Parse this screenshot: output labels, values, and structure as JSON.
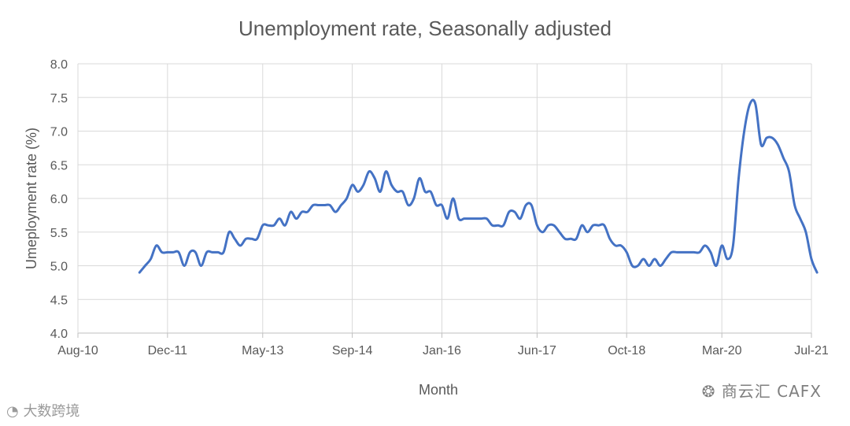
{
  "chart_data": {
    "type": "line",
    "title": "Unemployment rate, Seasonally adjusted",
    "xlabel": "Month",
    "ylabel": "Umeployment rate (%)",
    "ylim": [
      4.0,
      8.0
    ],
    "yticks": [
      "4.0",
      "4.5",
      "5.0",
      "5.5",
      "6.0",
      "6.5",
      "7.0",
      "7.5",
      "8.0"
    ],
    "xlim": [
      "2010-08",
      "2021-07"
    ],
    "xticks": [
      {
        "date": "2010-08",
        "label": "Aug-10"
      },
      {
        "date": "2011-12",
        "label": "Dec-11"
      },
      {
        "date": "2013-05",
        "label": "May-13"
      },
      {
        "date": "2014-09",
        "label": "Sep-14"
      },
      {
        "date": "2016-01",
        "label": "Jan-16"
      },
      {
        "date": "2017-06",
        "label": "Jun-17"
      },
      {
        "date": "2018-10",
        "label": "Oct-18"
      },
      {
        "date": "2020-03",
        "label": "Mar-20"
      },
      {
        "date": "2021-07",
        "label": "Jul-21"
      }
    ],
    "grid": true,
    "series": [
      {
        "color": "#4472c4",
        "points": [
          [
            "2011-07",
            4.9
          ],
          [
            "2011-08",
            5.0
          ],
          [
            "2011-09",
            5.1
          ],
          [
            "2011-10",
            5.3
          ],
          [
            "2011-11",
            5.2
          ],
          [
            "2011-12",
            5.2
          ],
          [
            "2012-01",
            5.2
          ],
          [
            "2012-02",
            5.2
          ],
          [
            "2012-03",
            5.0
          ],
          [
            "2012-04",
            5.2
          ],
          [
            "2012-05",
            5.2
          ],
          [
            "2012-06",
            5.0
          ],
          [
            "2012-07",
            5.2
          ],
          [
            "2012-08",
            5.2
          ],
          [
            "2012-09",
            5.2
          ],
          [
            "2012-10",
            5.2
          ],
          [
            "2012-11",
            5.5
          ],
          [
            "2012-12",
            5.4
          ],
          [
            "2013-01",
            5.3
          ],
          [
            "2013-02",
            5.4
          ],
          [
            "2013-03",
            5.4
          ],
          [
            "2013-04",
            5.4
          ],
          [
            "2013-05",
            5.6
          ],
          [
            "2013-06",
            5.6
          ],
          [
            "2013-07",
            5.6
          ],
          [
            "2013-08",
            5.7
          ],
          [
            "2013-09",
            5.6
          ],
          [
            "2013-10",
            5.8
          ],
          [
            "2013-11",
            5.7
          ],
          [
            "2013-12",
            5.8
          ],
          [
            "2014-01",
            5.8
          ],
          [
            "2014-02",
            5.9
          ],
          [
            "2014-03",
            5.9
          ],
          [
            "2014-04",
            5.9
          ],
          [
            "2014-05",
            5.9
          ],
          [
            "2014-06",
            5.8
          ],
          [
            "2014-07",
            5.9
          ],
          [
            "2014-08",
            6.0
          ],
          [
            "2014-09",
            6.2
          ],
          [
            "2014-10",
            6.1
          ],
          [
            "2014-11",
            6.2
          ],
          [
            "2014-12",
            6.4
          ],
          [
            "2015-01",
            6.3
          ],
          [
            "2015-02",
            6.1
          ],
          [
            "2015-03",
            6.4
          ],
          [
            "2015-04",
            6.2
          ],
          [
            "2015-05",
            6.1
          ],
          [
            "2015-06",
            6.1
          ],
          [
            "2015-07",
            5.9
          ],
          [
            "2015-08",
            6.0
          ],
          [
            "2015-09",
            6.3
          ],
          [
            "2015-10",
            6.1
          ],
          [
            "2015-11",
            6.1
          ],
          [
            "2015-12",
            5.9
          ],
          [
            "2016-01",
            5.9
          ],
          [
            "2016-02",
            5.7
          ],
          [
            "2016-03",
            6.0
          ],
          [
            "2016-04",
            5.7
          ],
          [
            "2016-05",
            5.7
          ],
          [
            "2016-06",
            5.7
          ],
          [
            "2016-07",
            5.7
          ],
          [
            "2016-08",
            5.7
          ],
          [
            "2016-09",
            5.7
          ],
          [
            "2016-10",
            5.6
          ],
          [
            "2016-11",
            5.6
          ],
          [
            "2016-12",
            5.6
          ],
          [
            "2017-01",
            5.8
          ],
          [
            "2017-02",
            5.8
          ],
          [
            "2017-03",
            5.7
          ],
          [
            "2017-04",
            5.9
          ],
          [
            "2017-05",
            5.9
          ],
          [
            "2017-06",
            5.6
          ],
          [
            "2017-07",
            5.5
          ],
          [
            "2017-08",
            5.6
          ],
          [
            "2017-09",
            5.6
          ],
          [
            "2017-10",
            5.5
          ],
          [
            "2017-11",
            5.4
          ],
          [
            "2017-12",
            5.4
          ],
          [
            "2018-01",
            5.4
          ],
          [
            "2018-02",
            5.6
          ],
          [
            "2018-03",
            5.5
          ],
          [
            "2018-04",
            5.6
          ],
          [
            "2018-05",
            5.6
          ],
          [
            "2018-06",
            5.6
          ],
          [
            "2018-07",
            5.4
          ],
          [
            "2018-08",
            5.3
          ],
          [
            "2018-09",
            5.3
          ],
          [
            "2018-10",
            5.2
          ],
          [
            "2018-11",
            5.0
          ],
          [
            "2018-12",
            5.0
          ],
          [
            "2019-01",
            5.1
          ],
          [
            "2019-02",
            5.0
          ],
          [
            "2019-03",
            5.1
          ],
          [
            "2019-04",
            5.0
          ],
          [
            "2019-05",
            5.1
          ],
          [
            "2019-06",
            5.2
          ],
          [
            "2019-07",
            5.2
          ],
          [
            "2019-08",
            5.2
          ],
          [
            "2019-09",
            5.2
          ],
          [
            "2019-10",
            5.2
          ],
          [
            "2019-11",
            5.2
          ],
          [
            "2019-12",
            5.3
          ],
          [
            "2020-01",
            5.2
          ],
          [
            "2020-02",
            5.0
          ],
          [
            "2020-03",
            5.3
          ],
          [
            "2020-04",
            5.1
          ],
          [
            "2020-05",
            5.3
          ],
          [
            "2020-06",
            6.3
          ],
          [
            "2020-07",
            7.0
          ],
          [
            "2020-08",
            7.4
          ],
          [
            "2020-09",
            7.4
          ],
          [
            "2020-10",
            6.8
          ],
          [
            "2020-11",
            6.9
          ],
          [
            "2020-12",
            6.9
          ],
          [
            "2021-01",
            6.8
          ],
          [
            "2021-02",
            6.6
          ],
          [
            "2021-03",
            6.4
          ],
          [
            "2021-04",
            5.9
          ],
          [
            "2021-05",
            5.7
          ],
          [
            "2021-06",
            5.5
          ],
          [
            "2021-07",
            5.1
          ],
          [
            "2021-08",
            4.9
          ]
        ]
      }
    ]
  },
  "watermark": {
    "right": "商云汇 CAFX",
    "left": "大数跨境"
  }
}
